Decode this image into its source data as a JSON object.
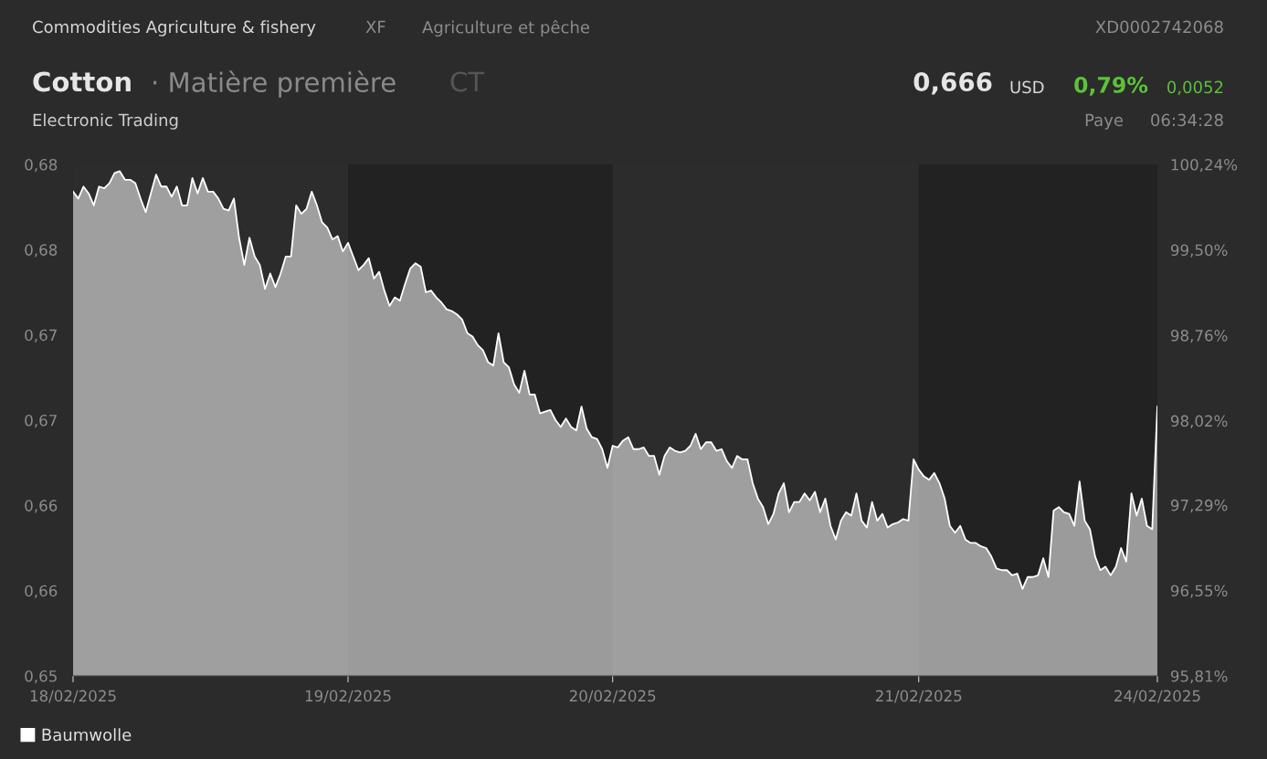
{
  "chart_data": {
    "type": "area",
    "title": "Cotton",
    "subtitle": "Electronic Trading",
    "annotations": [
      "Commodities Agriculture & fishery",
      "XF",
      "Agriculture et pêche",
      "XD0002742068",
      "· Matière première",
      "CT",
      "0,666",
      "USD",
      "0,79%",
      "0,0052",
      "Paye",
      "06:34:28"
    ],
    "categories": [
      "18/02/2025",
      null,
      null,
      null,
      null,
      null,
      null,
      null,
      null,
      null,
      null,
      null,
      null,
      null,
      null,
      null,
      null,
      null,
      null,
      null,
      null,
      null,
      null,
      null,
      null,
      null,
      null,
      null,
      null,
      null,
      null,
      null,
      null,
      null,
      null,
      null,
      null,
      null,
      null,
      null,
      null,
      null,
      null,
      null,
      null,
      null,
      null,
      null,
      null,
      null,
      null,
      null,
      null,
      "19/02/2025",
      null,
      null,
      null,
      null,
      null,
      null,
      null,
      null,
      null,
      null,
      null,
      null,
      null,
      null,
      null,
      null,
      null,
      null,
      null,
      null,
      null,
      null,
      null,
      null,
      null,
      null,
      null,
      null,
      null,
      null,
      null,
      null,
      null,
      null,
      null,
      null,
      null,
      null,
      null,
      null,
      null,
      null,
      null,
      null,
      null,
      null,
      null,
      null,
      null,
      null,
      "20/02/2025",
      null,
      null,
      null,
      null,
      null,
      null,
      null,
      null,
      null,
      null,
      null,
      null,
      null,
      null,
      null,
      null,
      null,
      null,
      null,
      null,
      null,
      null,
      null,
      null,
      null,
      null,
      null,
      null,
      null,
      null,
      null,
      null,
      null,
      null,
      null,
      null,
      null,
      null,
      null,
      null,
      null,
      null,
      null,
      null,
      null,
      null,
      null,
      null,
      null,
      null,
      null,
      null,
      null,
      null,
      null,
      null,
      null,
      null,
      "21/02/2025",
      null,
      null,
      null,
      null,
      null,
      null,
      null,
      null,
      null,
      null,
      null,
      null,
      null,
      null,
      null,
      null,
      null,
      null,
      null,
      null,
      null,
      null,
      null,
      null,
      null,
      null,
      null,
      null,
      null,
      null,
      null,
      null,
      null,
      null,
      null,
      null,
      null,
      null,
      null,
      null,
      null,
      null,
      null,
      null,
      null,
      "24/02/2025"
    ],
    "series": [
      {
        "name": "Baumwolle",
        "color": "#ffffff",
        "values": [
          0.6784,
          0.678,
          0.6787,
          0.6783,
          0.6776,
          0.6787,
          0.6786,
          0.6789,
          0.6795,
          0.6796,
          0.6791,
          0.6791,
          0.6789,
          0.678,
          0.6772,
          0.6783,
          0.6794,
          0.6787,
          0.6787,
          0.6781,
          0.6787,
          0.6776,
          0.6776,
          0.6792,
          0.6783,
          0.6792,
          0.6784,
          0.6784,
          0.678,
          0.6774,
          0.6773,
          0.678,
          0.6757,
          0.6741,
          0.6757,
          0.6746,
          0.6741,
          0.6727,
          0.6736,
          0.6728,
          0.6736,
          0.6746,
          0.6746,
          0.6776,
          0.6771,
          0.6774,
          0.6784,
          0.6776,
          0.6766,
          0.6763,
          0.6756,
          0.6758,
          0.6749,
          0.6754,
          0.6746,
          0.6738,
          0.6741,
          0.6745,
          0.6733,
          0.6737,
          0.6726,
          0.6717,
          0.6722,
          0.672,
          0.673,
          0.6739,
          0.6742,
          0.674,
          0.6725,
          0.6726,
          0.6722,
          0.6719,
          0.6715,
          0.6714,
          0.6712,
          0.6709,
          0.6701,
          0.6699,
          0.6694,
          0.6691,
          0.6684,
          0.6682,
          0.6701,
          0.6684,
          0.6681,
          0.6671,
          0.6666,
          0.6679,
          0.6665,
          0.6665,
          0.6654,
          0.6655,
          0.6656,
          0.665,
          0.6646,
          0.6651,
          0.6646,
          0.6644,
          0.6658,
          0.6645,
          0.664,
          0.6639,
          0.6633,
          0.6622,
          0.6635,
          0.6634,
          0.6638,
          0.664,
          0.6633,
          0.6633,
          0.6634,
          0.6629,
          0.6629,
          0.6618,
          0.6629,
          0.6634,
          0.6632,
          0.6631,
          0.6632,
          0.6635,
          0.6642,
          0.6633,
          0.6637,
          0.6637,
          0.6632,
          0.6633,
          0.6626,
          0.6622,
          0.6629,
          0.6627,
          0.6627,
          0.6613,
          0.6604,
          0.6599,
          0.6589,
          0.6595,
          0.6607,
          0.6613,
          0.6596,
          0.6602,
          0.6602,
          0.6607,
          0.6603,
          0.6608,
          0.6596,
          0.6604,
          0.6588,
          0.658,
          0.6591,
          0.6596,
          0.6594,
          0.6607,
          0.6591,
          0.6587,
          0.6602,
          0.6591,
          0.6595,
          0.6587,
          0.6589,
          0.659,
          0.6592,
          0.6591,
          0.6627,
          0.6621,
          0.6617,
          0.6615,
          0.6619,
          0.6613,
          0.6604,
          0.6588,
          0.6584,
          0.6588,
          0.658,
          0.6578,
          0.6578,
          0.6576,
          0.6575,
          0.657,
          0.6563,
          0.6562,
          0.6562,
          0.6559,
          0.656,
          0.6551,
          0.6558,
          0.6558,
          0.6559,
          0.6569,
          0.6558,
          0.6597,
          0.6599,
          0.6596,
          0.6595,
          0.6588,
          0.6614,
          0.6591,
          0.6586,
          0.657,
          0.6562,
          0.6564,
          0.6559,
          0.6564,
          0.6575,
          0.6567,
          0.6607,
          0.6594,
          0.6604,
          0.6588,
          0.6586,
          0.6658
        ]
      }
    ],
    "ylim": [
      0.65,
      0.68
    ],
    "yticks": [
      {
        "value": 0.65,
        "label": "0,65"
      },
      {
        "value": 0.655,
        "label": "0,66"
      },
      {
        "value": 0.66,
        "label": "0,66"
      },
      {
        "value": 0.665,
        "label": "0,67"
      },
      {
        "value": 0.67,
        "label": "0,67"
      },
      {
        "value": 0.675,
        "label": "0,68"
      },
      {
        "value": 0.68,
        "label": "0,68"
      }
    ],
    "y2lim": [
      95.81,
      100.24
    ],
    "y2ticks": [
      {
        "value": 95.81,
        "label": "95,81%"
      },
      {
        "value": 96.55,
        "label": "96,55%"
      },
      {
        "value": 97.29,
        "label": "97,29%"
      },
      {
        "value": 98.02,
        "label": "98,02%"
      },
      {
        "value": 98.76,
        "label": "98,76%"
      },
      {
        "value": 99.5,
        "label": "99,50%"
      },
      {
        "value": 100.24,
        "label": "100,24%"
      }
    ],
    "bands": [
      {
        "axis": "x",
        "from": "19/02/2025",
        "to": "20/02/2025",
        "color": "#222222"
      },
      {
        "axis": "x",
        "from": "21/02/2025",
        "to": "24/02/2025",
        "color": "#222222"
      }
    ],
    "grid": false,
    "legend": "bottom left"
  }
}
